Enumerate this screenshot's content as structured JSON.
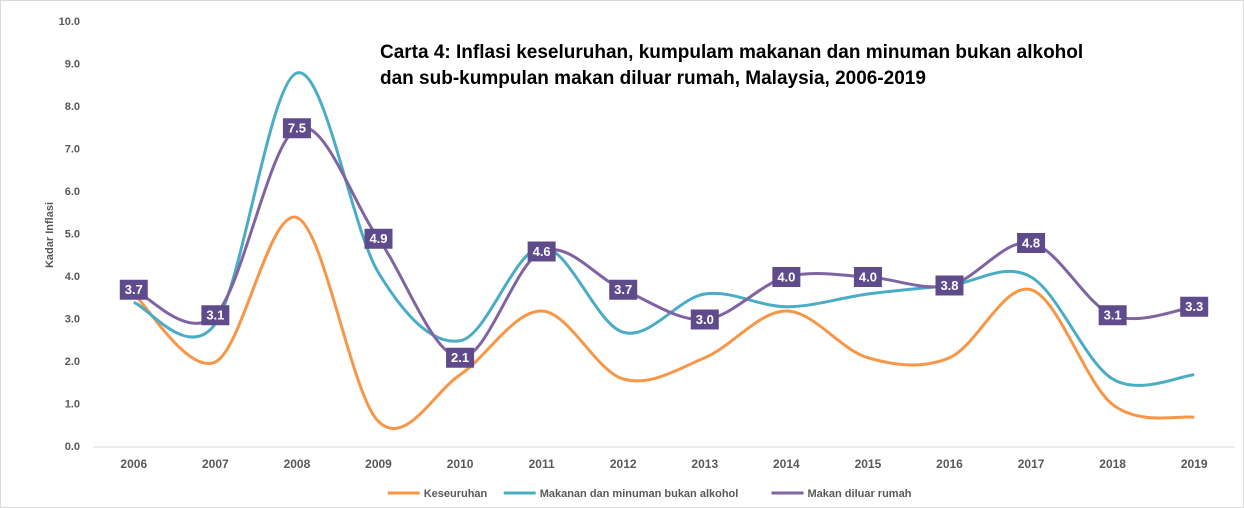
{
  "chart_data": {
    "type": "line",
    "title": "Carta 4: Inflasi keseluruhan, kumpulam makanan dan minuman bukan alkohol dan sub-kumpulan makan diluar rumah, Malaysia, 2006-2019",
    "y_label": "Kadar Inflasi",
    "categories": [
      "2006",
      "2007",
      "2008",
      "2009",
      "2010",
      "2011",
      "2012",
      "2013",
      "2014",
      "2015",
      "2016",
      "2017",
      "2018",
      "2019"
    ],
    "series": [
      {
        "name": "Keseuruhan",
        "color": "#f79646",
        "values": [
          3.6,
          2.0,
          5.4,
          0.6,
          1.7,
          3.2,
          1.6,
          2.1,
          3.2,
          2.1,
          2.1,
          3.7,
          1.0,
          0.7
        ]
      },
      {
        "name": "Makanan dan minuman bukan alkohol",
        "color": "#4bacc6",
        "values": [
          3.4,
          2.9,
          8.8,
          4.1,
          2.5,
          4.7,
          2.7,
          3.6,
          3.3,
          3.6,
          3.8,
          4.0,
          1.6,
          1.7
        ]
      },
      {
        "name": "Makan diluar rumah",
        "color": "#8064a2",
        "values": [
          3.7,
          3.1,
          7.5,
          4.9,
          2.1,
          4.6,
          3.7,
          3.0,
          4.0,
          4.0,
          3.8,
          4.8,
          3.1,
          3.3
        ],
        "value_labels": [
          "3.7",
          "3.1",
          "7.5",
          "4.9",
          "2.1",
          "4.6",
          "3.7",
          "3.0",
          "4.0",
          "4.0",
          "3.8",
          "4.8",
          "3.1",
          "3.3"
        ]
      }
    ],
    "ylim": [
      0,
      10
    ],
    "yticks": [
      {
        "value": 0,
        "label": "0.0"
      },
      {
        "value": 1,
        "label": "1.0"
      },
      {
        "value": 2,
        "label": "2.0"
      },
      {
        "value": 3,
        "label": "3.0"
      },
      {
        "value": 4,
        "label": "4.0"
      },
      {
        "value": 5,
        "label": "5.0"
      },
      {
        "value": 6,
        "label": "6.0"
      },
      {
        "value": 7,
        "label": "7.0"
      },
      {
        "value": 8,
        "label": "8.0"
      },
      {
        "value": 9,
        "label": "9.0"
      },
      {
        "value": 10,
        "label": "10.0"
      }
    ],
    "grid": false,
    "legend": "bottom"
  }
}
